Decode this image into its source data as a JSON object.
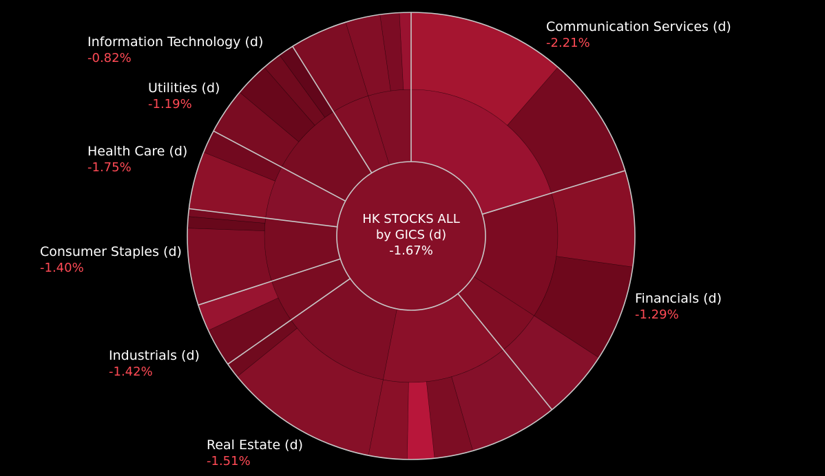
{
  "chart_data": {
    "type": "sunburst",
    "center": {
      "title_line1": "HK STOCKS ALL",
      "title_line2": "by GICS (d)",
      "change": "-1.67%"
    },
    "sectors": [
      {
        "name": "Communication Services (d)",
        "change": "-2.21%",
        "color": "#a11530",
        "start_deg": 0,
        "end_deg": 73,
        "industries": [
          {
            "color": "#9a1230",
            "span": 73,
            "subs": [
              {
                "color": "#a51530",
                "span": 41
              },
              {
                "color": "#760a20",
                "span": 32
              }
            ]
          }
        ]
      },
      {
        "name": "Financials (d)",
        "change": "-1.29%",
        "color": "#7e0c22",
        "start_deg": 73,
        "end_deg": 141,
        "industries": [
          {
            "color": "#7c0b22",
            "span": 50,
            "subs": [
              {
                "color": "#8a0f26",
                "span": 25
              },
              {
                "color": "#6e081c",
                "span": 25
              }
            ]
          },
          {
            "color": "#800d24",
            "span": 18,
            "subs": [
              {
                "color": "#86102a",
                "span": 18
              }
            ]
          }
        ]
      },
      {
        "name": "Real Estate (d)",
        "change": "-1.51%",
        "color": "#8a1028",
        "start_deg": 141,
        "end_deg": 235,
        "industries": [
          {
            "color": "#8b1029",
            "span": 50,
            "subs": [
              {
                "color": "#85102a",
                "span": 23
              },
              {
                "color": "#7d0d24",
                "span": 10
              },
              {
                "color": "#b8163a",
                "span": 7
              },
              {
                "color": "#8a1028",
                "span": 10
              }
            ]
          },
          {
            "color": "#7f0d25",
            "span": 44,
            "subs": [
              {
                "color": "#871028",
                "span": 40
              },
              {
                "color": "#700a1e",
                "span": 4
              }
            ]
          }
        ]
      },
      {
        "name": "Industrials (d)",
        "change": "-1.42%",
        "color": "#7a0c22",
        "start_deg": 235,
        "end_deg": 252,
        "industries": [
          {
            "color": "#7a0c22",
            "span": 17,
            "subs": [
              {
                "color": "#710a1f",
                "span": 10
              },
              {
                "color": "#981430",
                "span": 7
              }
            ]
          }
        ]
      },
      {
        "name": "Consumer Staples (d)",
        "change": "-1.40%",
        "color": "#7c0c23",
        "start_deg": 252,
        "end_deg": 277,
        "industries": [
          {
            "color": "#7a0c22",
            "span": 25,
            "subs": [
              {
                "color": "#800d25",
                "span": 20
              },
              {
                "color": "#68081b",
                "span": 3
              },
              {
                "color": "#770b21",
                "span": 2
              }
            ]
          }
        ]
      },
      {
        "name": "Health Care (d)",
        "change": "-1.75%",
        "color": "#86102a",
        "start_deg": 277,
        "end_deg": 298,
        "industries": [
          {
            "color": "#86102a",
            "span": 21,
            "subs": [
              {
                "color": "#8e1129",
                "span": 15
              },
              {
                "color": "#72091f",
                "span": 6
              }
            ]
          }
        ]
      },
      {
        "name": "Utilities (d)",
        "change": "-1.19%",
        "color": "#770b21",
        "start_deg": 298,
        "end_deg": 328,
        "industries": [
          {
            "color": "#790c22",
            "span": 30,
            "subs": [
              {
                "color": "#7a0c22",
                "span": 12
              },
              {
                "color": "#68071b",
                "span": 9
              },
              {
                "color": "#700a1e",
                "span": 5
              },
              {
                "color": "#62061a",
                "span": 4
              }
            ]
          }
        ]
      },
      {
        "name": "Information Technology (d)",
        "change": "-0.82%",
        "color": "#830e26",
        "start_deg": 328,
        "end_deg": 360,
        "industries": [
          {
            "color": "#830e26",
            "span": 15,
            "subs": [
              {
                "color": "#7e0d24",
                "span": 15
              }
            ]
          },
          {
            "color": "#810e26",
            "span": 17,
            "subs": [
              {
                "color": "#830e26",
                "span": 9
              },
              {
                "color": "#7c0c24",
                "span": 5
              },
              {
                "color": "#9a1230",
                "span": 3
              }
            ]
          }
        ]
      }
    ]
  }
}
